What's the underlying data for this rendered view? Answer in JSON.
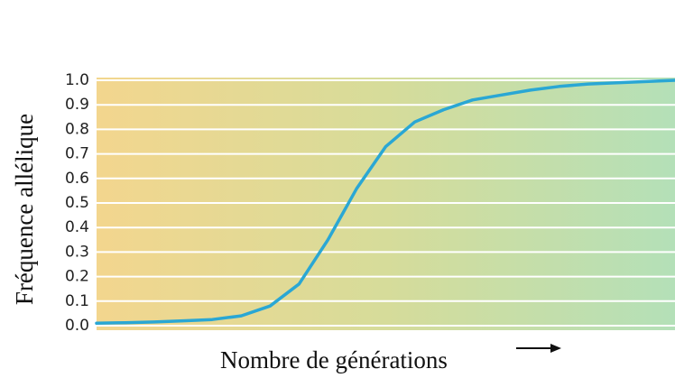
{
  "chart_data": {
    "type": "line",
    "ylabel": "Fréquence allélique",
    "xlabel": "Nombre de générations",
    "categories": [
      null,
      null,
      null,
      null,
      null,
      null,
      null,
      null,
      null,
      null,
      null,
      null,
      null,
      null,
      null,
      null,
      null,
      null,
      null,
      null,
      null
    ],
    "series": [
      {
        "color": "#2aa7d4",
        "values": [
          0.01,
          0.012,
          0.015,
          0.02,
          0.025,
          0.04,
          0.08,
          0.17,
          0.35,
          0.56,
          0.73,
          0.83,
          0.88,
          0.92,
          0.94,
          0.96,
          0.975,
          0.985,
          0.99,
          0.995,
          1.0
        ]
      }
    ],
    "ylim": [
      0,
      1
    ],
    "yticks": [
      {
        "value": 0,
        "label": "0.0"
      },
      0.1,
      0.2,
      0.3,
      0.4,
      0.5,
      0.6,
      0.7,
      0.8,
      0.9,
      {
        "value": 1,
        "label": "1.0"
      }
    ],
    "grid": true
  }
}
